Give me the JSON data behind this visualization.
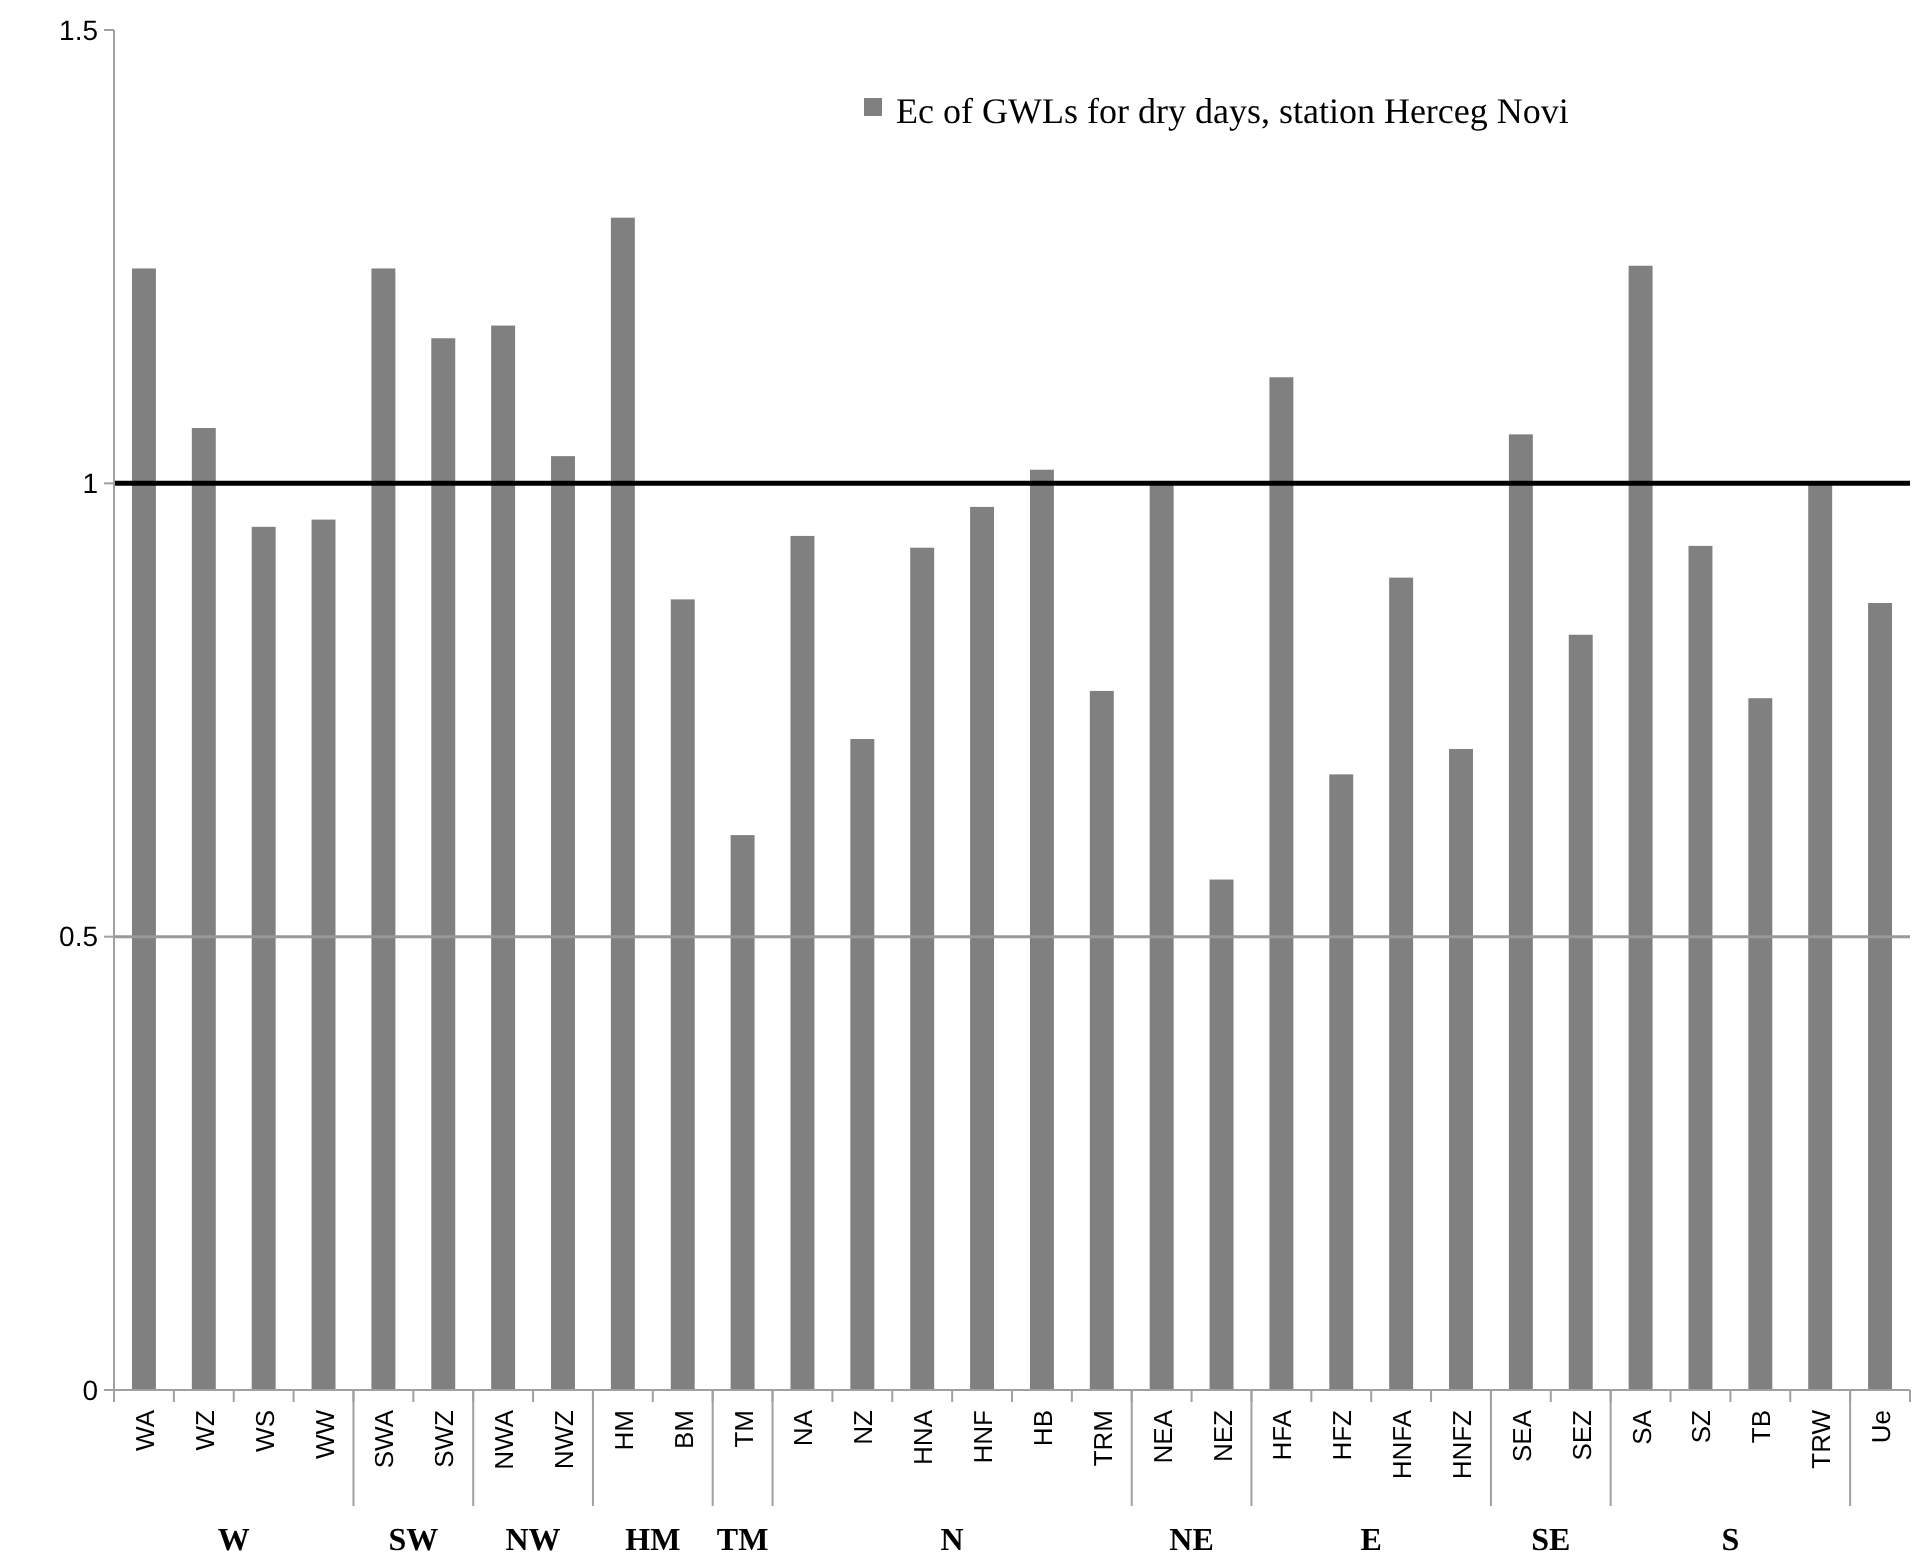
{
  "chart_data": {
    "type": "bar",
    "categories": [
      "WA",
      "WZ",
      "WS",
      "WW",
      "SWA",
      "SWZ",
      "NWA",
      "NWZ",
      "HM",
      "BM",
      "TM",
      "NA",
      "NZ",
      "HNA",
      "HNF",
      "HB",
      "TRM",
      "NEA",
      "NEZ",
      "HFA",
      "HFZ",
      "HNFA",
      "HNFZ",
      "SEA",
      "SEZ",
      "SA",
      "SZ",
      "TB",
      "TRW",
      "Ue"
    ],
    "series": [
      {
        "name": "Ec of GWLs for dry days, station Herceg Novi",
        "color": "#808080",
        "values": [
          1.237,
          1.061,
          0.952,
          0.96,
          1.237,
          1.16,
          1.174,
          1.03,
          1.293,
          0.872,
          0.612,
          0.942,
          0.718,
          0.929,
          0.974,
          1.015,
          0.771,
          1.0,
          0.563,
          1.117,
          0.679,
          0.896,
          0.707,
          1.054,
          0.833,
          1.24,
          0.931,
          0.763,
          1.0,
          0.868
        ]
      }
    ],
    "ylim": [
      0,
      1.5
    ],
    "yticks": [
      0,
      0.5,
      1,
      1.5
    ],
    "legend": "top right",
    "ref_lines": [
      {
        "axis": "y",
        "value": 1,
        "color": "#000000"
      },
      {
        "axis": "y",
        "value": 0.5,
        "color": "#999999"
      }
    ],
    "annotations": [
      "W",
      "SW",
      "NW",
      "HM",
      "TM",
      "N",
      "NE",
      "E",
      "SE",
      "S"
    ]
  }
}
